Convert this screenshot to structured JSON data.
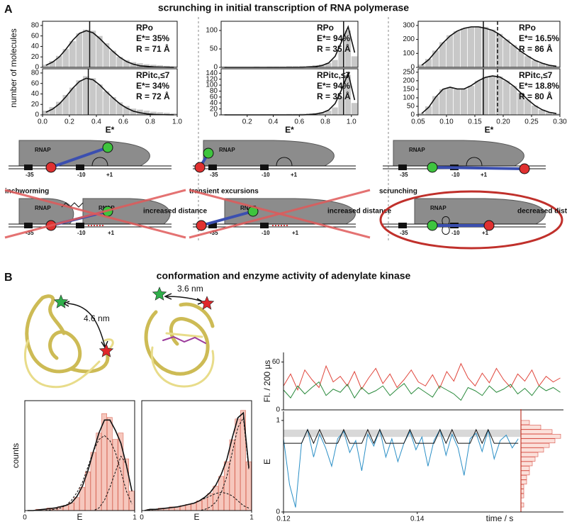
{
  "panel_a": {
    "label": "A",
    "title": "scrunching in initial transcription of RNA polymerase"
  },
  "panel_b": {
    "label": "B",
    "title": "conformation and enzyme activity of adenylate kinase"
  },
  "diagrams": {
    "rnap": "RNAP",
    "m35": "-35",
    "m10": "-10",
    "p1": "+1",
    "columns": [
      {
        "caption": "inchworming",
        "result": "increased distance"
      },
      {
        "caption": "transient excursions",
        "result": "increased distance"
      },
      {
        "caption": "scrunching",
        "result": "decreased distance"
      }
    ]
  },
  "structures": [
    "4.6 nm",
    "3.6 nm"
  ],
  "chart_data": [
    {
      "type": "histogram",
      "ylabel": "number of molecules",
      "annotations": [
        "RPo",
        "E*= 35%",
        "R = 71 Å"
      ],
      "bins": [
        0,
        0.05,
        0.1,
        0.15,
        0.2,
        0.25,
        0.3,
        0.35,
        0.4,
        0.45,
        0.5,
        0.55,
        0.6,
        0.65,
        0.7,
        0.75,
        0.8,
        0.85,
        0.9,
        0.95,
        1
      ],
      "counts": [
        5,
        12,
        22,
        35,
        50,
        65,
        72,
        70,
        60,
        46,
        32,
        20,
        14,
        10,
        8,
        6,
        5,
        4,
        3,
        2
      ],
      "fit": [
        4,
        10,
        20,
        35,
        52,
        65,
        70,
        66,
        55,
        42,
        30,
        19,
        11,
        6,
        3,
        2,
        1,
        0.5,
        0.2,
        0.1
      ],
      "vlines": [
        0.35
      ],
      "xlim": [
        0,
        1
      ],
      "ylim": [
        0,
        88
      ],
      "yticks": [
        0,
        20,
        40,
        60,
        80
      ]
    },
    {
      "type": "histogram",
      "xlabel": "E*",
      "annotations": [
        "RPitc,≤7",
        "E*= 34%",
        "R = 72 Å"
      ],
      "bins": [
        0,
        0.05,
        0.1,
        0.15,
        0.2,
        0.25,
        0.3,
        0.35,
        0.4,
        0.45,
        0.5,
        0.55,
        0.6,
        0.65,
        0.7,
        0.75,
        0.8,
        0.85,
        0.9,
        0.95,
        1
      ],
      "counts": [
        8,
        15,
        25,
        38,
        52,
        66,
        74,
        70,
        58,
        45,
        34,
        24,
        17,
        12,
        10,
        8,
        6,
        5,
        4,
        3
      ],
      "fit": [
        5,
        11,
        21,
        35,
        51,
        64,
        70,
        67,
        57,
        44,
        32,
        21,
        13,
        7,
        4,
        2,
        1,
        0.5,
        0.2,
        0.1
      ],
      "vlines": [
        0.34
      ],
      "xlim": [
        0,
        1
      ],
      "ylim": [
        0,
        88
      ],
      "yticks": [
        0,
        20,
        40,
        60,
        80
      ],
      "xticks": [
        {
          "value": 0,
          "label": "0.0"
        },
        0.2,
        0.4,
        0.6,
        0.8,
        {
          "value": 1,
          "label": "1.0"
        }
      ]
    },
    {
      "type": "histogram",
      "annotations": [
        "RPo",
        "E*= 94%",
        "R = 35 Å"
      ],
      "bins": [
        0,
        0.05,
        0.1,
        0.15,
        0.2,
        0.25,
        0.3,
        0.35,
        0.4,
        0.45,
        0.5,
        0.55,
        0.6,
        0.65,
        0.7,
        0.75,
        0.8,
        0.85,
        0.9,
        0.95,
        1,
        1.05
      ],
      "counts": [
        2,
        1,
        1,
        1,
        1,
        2,
        1,
        2,
        2,
        2,
        3,
        3,
        4,
        4,
        6,
        8,
        12,
        20,
        45,
        100,
        30
      ],
      "fit": [
        0,
        0,
        0,
        0,
        0,
        0,
        0,
        0,
        0,
        0,
        0,
        0,
        0,
        1,
        2,
        5,
        12,
        30,
        70,
        110,
        40
      ],
      "vlines": [
        0.94
      ],
      "xlim": [
        0,
        1.05
      ],
      "ylim": [
        0,
        125
      ],
      "yticks": [
        0,
        50,
        100
      ]
    },
    {
      "type": "histogram",
      "xlabel": "E*",
      "annotations": [
        "RPitc,≤7",
        "E*= 94%",
        "R = 35 Å"
      ],
      "bins": [
        0,
        0.05,
        0.1,
        0.15,
        0.2,
        0.25,
        0.3,
        0.35,
        0.4,
        0.45,
        0.5,
        0.55,
        0.6,
        0.65,
        0.7,
        0.75,
        0.8,
        0.85,
        0.9,
        0.95,
        1,
        1.05
      ],
      "counts": [
        2,
        1,
        1,
        1,
        1,
        1,
        2,
        2,
        2,
        2,
        3,
        3,
        4,
        5,
        6,
        9,
        14,
        25,
        60,
        135,
        40
      ],
      "fit": [
        0,
        0,
        0,
        0,
        0,
        0,
        0,
        0,
        0,
        0,
        0,
        0,
        0,
        1,
        3,
        7,
        16,
        38,
        85,
        140,
        50
      ],
      "vlines": [
        0.94
      ],
      "xlim": [
        0,
        1.05
      ],
      "ylim": [
        0,
        155
      ],
      "yticks": [
        0,
        20,
        40,
        60,
        80,
        100,
        120,
        140
      ],
      "xticks": [
        0.2,
        0.4,
        0.6,
        0.8,
        {
          "value": 1,
          "label": "1.0"
        }
      ]
    },
    {
      "type": "histogram",
      "annotations": [
        "RPo",
        "E*= 16.5%",
        "R = 86 Å"
      ],
      "bins": [
        0.05,
        0.0625,
        0.075,
        0.0875,
        0.1,
        0.1125,
        0.125,
        0.1375,
        0.15,
        0.1625,
        0.175,
        0.1875,
        0.2,
        0.2125,
        0.225,
        0.2375,
        0.25,
        0.2625,
        0.275,
        0.2875,
        0.3
      ],
      "counts": [
        20,
        60,
        120,
        180,
        230,
        260,
        280,
        290,
        295,
        290,
        270,
        240,
        200,
        160,
        120,
        80,
        50,
        30,
        15,
        8
      ],
      "fit": [
        15,
        55,
        115,
        175,
        225,
        260,
        280,
        290,
        290,
        280,
        265,
        235,
        195,
        155,
        115,
        80,
        50,
        30,
        15,
        8
      ],
      "vlines": [
        0.165,
        0.19
      ],
      "xlim": [
        0.05,
        0.3
      ],
      "ylim": [
        0,
        330
      ],
      "yticks": [
        0,
        100,
        200,
        300
      ]
    },
    {
      "type": "histogram",
      "xlabel": "E*",
      "annotations": [
        "RPitc,≤7",
        "E*= 18.8%",
        "R = 80 Å"
      ],
      "bins": [
        0.05,
        0.0625,
        0.075,
        0.0875,
        0.1,
        0.1125,
        0.125,
        0.1375,
        0.15,
        0.1625,
        0.175,
        0.1875,
        0.2,
        0.2125,
        0.225,
        0.2375,
        0.25,
        0.2625,
        0.275,
        0.2875,
        0.3
      ],
      "counts": [
        10,
        50,
        110,
        150,
        160,
        150,
        150,
        170,
        200,
        220,
        230,
        225,
        200,
        170,
        130,
        90,
        55,
        30,
        15,
        8
      ],
      "fit": [
        8,
        45,
        105,
        150,
        162,
        152,
        152,
        172,
        200,
        220,
        228,
        222,
        198,
        168,
        128,
        88,
        54,
        30,
        15,
        8
      ],
      "vlines": [
        0.165,
        0.19
      ],
      "xlim": [
        0.05,
        0.3
      ],
      "ylim": [
        0,
        270
      ],
      "yticks": [
        0,
        50,
        100,
        150,
        200,
        250
      ],
      "xticks": [
        0.05,
        {
          "value": 0.1,
          "label": "0.10"
        },
        0.15,
        {
          "value": 0.2,
          "label": "0.20"
        },
        0.25,
        {
          "value": 0.3,
          "label": "0.30"
        }
      ]
    },
    {
      "type": "histogram",
      "ylabel": "counts",
      "xlabel": "E",
      "bins": [
        0,
        0.05,
        0.1,
        0.15,
        0.2,
        0.25,
        0.3,
        0.35,
        0.4,
        0.45,
        0.5,
        0.55,
        0.6,
        0.65,
        0.7,
        0.75,
        0.8,
        0.85,
        0.9,
        0.95,
        1
      ],
      "counts": [
        0,
        0,
        1,
        1,
        2,
        2,
        3,
        4,
        6,
        10,
        18,
        30,
        45,
        60,
        75,
        72,
        55,
        60,
        40,
        15
      ],
      "fit": [
        0,
        0,
        0.5,
        1,
        1.5,
        2,
        3,
        4,
        6,
        11,
        19,
        31,
        46,
        60,
        70,
        70,
        62,
        52,
        35,
        15
      ],
      "components": [
        [
          0,
          0,
          0,
          0,
          0.5,
          1,
          2,
          4,
          8,
          14,
          22,
          34,
          46,
          55,
          58,
          54,
          45,
          30,
          15,
          5
        ],
        [
          0,
          0,
          0,
          0,
          0,
          0,
          0,
          0,
          0,
          0,
          0,
          0,
          0,
          2,
          8,
          18,
          30,
          42,
          36,
          15
        ]
      ],
      "xlim": [
        0,
        1
      ],
      "ylim": [
        0,
        85
      ],
      "xticks": [
        0,
        1
      ]
    },
    {
      "type": "histogram",
      "xlabel": "E",
      "bins": [
        0,
        0.05,
        0.1,
        0.15,
        0.2,
        0.25,
        0.3,
        0.35,
        0.4,
        0.45,
        0.5,
        0.55,
        0.6,
        0.65,
        0.7,
        0.75,
        0.8,
        0.85,
        0.9,
        0.95,
        1
      ],
      "counts": [
        0,
        1,
        1,
        2,
        2,
        3,
        3,
        4,
        5,
        6,
        8,
        10,
        14,
        20,
        28,
        40,
        58,
        75,
        82,
        40
      ],
      "fit": [
        0,
        1,
        1,
        1.5,
        2,
        2.5,
        3,
        4,
        5,
        6,
        8,
        11,
        15,
        21,
        30,
        42,
        60,
        76,
        80,
        35
      ],
      "components": [
        [
          0,
          0.5,
          1,
          1.5,
          2,
          2.5,
          3,
          4,
          5,
          6,
          8,
          10,
          12,
          14,
          15,
          14,
          12,
          8,
          4,
          2
        ],
        [
          0,
          0,
          0,
          0,
          0,
          0,
          0,
          0,
          0,
          0,
          0,
          1,
          3,
          7,
          15,
          28,
          48,
          68,
          76,
          33
        ]
      ],
      "xlim": [
        0,
        1
      ],
      "ylim": [
        0,
        90
      ],
      "xticks": [
        0,
        1
      ]
    },
    {
      "type": "line",
      "ylabel": "Fl. / 200 µs",
      "x": [
        0.12,
        0.1209,
        0.1218,
        0.1227,
        0.1236,
        0.1245,
        0.1254,
        0.1263,
        0.1272,
        0.1281,
        0.129,
        0.1299,
        0.1308,
        0.1317,
        0.1326,
        0.1335,
        0.1344,
        0.1353,
        0.1362,
        0.1371,
        0.138,
        0.1389,
        0.1398,
        0.1407,
        0.1416,
        0.1425,
        0.1434,
        0.1443,
        0.1452,
        0.1461,
        0.147,
        0.1479,
        0.1488,
        0.1497,
        0.1506,
        0.1515,
        0.1524,
        0.1533,
        0.1542,
        0.1551
      ],
      "series": [
        {
          "color": "#e0463c",
          "values": [
            30,
            45,
            25,
            50,
            38,
            28,
            55,
            35,
            42,
            30,
            48,
            26,
            40,
            52,
            33,
            45,
            28,
            38,
            50,
            35,
            30,
            44,
            27,
            48,
            36,
            58,
            40,
            30,
            46,
            34,
            52,
            38,
            28,
            45,
            36,
            50,
            30,
            42,
            35,
            40
          ]
        },
        {
          "color": "#2a8a3c",
          "values": [
            25,
            15,
            30,
            20,
            28,
            35,
            18,
            26,
            22,
            32,
            15,
            28,
            20,
            24,
            30,
            18,
            26,
            33,
            20,
            28,
            22,
            16,
            30,
            25,
            20,
            12,
            28,
            24,
            18,
            30,
            22,
            26,
            32,
            20,
            27,
            18,
            30,
            24,
            28,
            22
          ]
        }
      ],
      "xlim": [
        0.12,
        0.1555
      ],
      "ylim": [
        0,
        72
      ],
      "yticks": [
        0,
        60
      ]
    },
    {
      "type": "line",
      "ylabel": "E",
      "xlabel": "time / s",
      "x": [
        0.12,
        0.1209,
        0.1218,
        0.1227,
        0.1236,
        0.1245,
        0.1254,
        0.1263,
        0.1272,
        0.1281,
        0.129,
        0.1299,
        0.1308,
        0.1317,
        0.1326,
        0.1335,
        0.1344,
        0.1353,
        0.1362,
        0.1371,
        0.138,
        0.1389,
        0.1398,
        0.1407,
        0.1416,
        0.1425,
        0.1434,
        0.1443,
        0.1452,
        0.1461,
        0.147,
        0.1479,
        0.1488,
        0.1497,
        0.1506,
        0.1515,
        0.1524,
        0.1533,
        0.1542,
        0.1551
      ],
      "series": [
        {
          "color": "#2b8fc6",
          "values": [
            0.8,
            0.3,
            0.05,
            0.75,
            0.9,
            0.6,
            0.85,
            0.7,
            0.5,
            0.8,
            0.88,
            0.65,
            0.78,
            0.45,
            0.85,
            0.72,
            0.9,
            0.6,
            0.8,
            0.55,
            0.75,
            0.88,
            0.68,
            0.82,
            0.5,
            0.78,
            0.9,
            0.62,
            0.85,
            0.7,
            0.4,
            0.8,
            0.86,
            0.66,
            0.9,
            0.58,
            0.78,
            0.84,
            0.7,
            0.8
          ]
        },
        {
          "color": "#111111",
          "values": [
            0.75,
            0.75,
            0.75,
            0.75,
            0.9,
            0.75,
            0.9,
            0.75,
            0.75,
            0.75,
            0.9,
            0.75,
            0.75,
            0.75,
            0.9,
            0.75,
            0.9,
            0.75,
            0.75,
            0.75,
            0.75,
            0.9,
            0.75,
            0.75,
            0.75,
            0.75,
            0.9,
            0.75,
            0.9,
            0.75,
            0.75,
            0.75,
            0.9,
            0.75,
            0.9,
            0.75,
            0.75,
            0.75,
            0.75,
            0.75
          ]
        }
      ],
      "band": [
        0.82,
        0.9
      ],
      "side_hist": {
        "bins": [
          0,
          0.05,
          0.1,
          0.15,
          0.2,
          0.25,
          0.3,
          0.35,
          0.4,
          0.45,
          0.5,
          0.55,
          0.6,
          0.65,
          0.7,
          0.75,
          0.8,
          0.85,
          0.9,
          0.95,
          1
        ],
        "counts": [
          0,
          1,
          0,
          1,
          1,
          1,
          2,
          2,
          3,
          3,
          4,
          5,
          6,
          8,
          10,
          12,
          14,
          11,
          7,
          3
        ],
        "xlim": [
          0,
          15
        ]
      },
      "xlim": [
        0.12,
        0.1555
      ],
      "ylim": [
        0,
        1.1
      ],
      "yticks": [
        0,
        1
      ],
      "xticks": [
        0.12,
        0.14
      ]
    }
  ]
}
